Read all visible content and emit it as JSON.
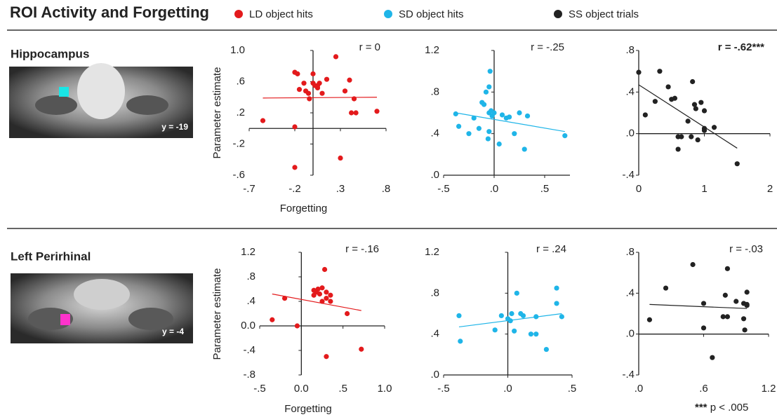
{
  "figure": {
    "title": "ROI Activity and Forgetting",
    "rows": [
      {
        "label": "Hippocampus",
        "slice": "y = -19"
      },
      {
        "label": "Left Perirhinal",
        "slice": "y = -4"
      }
    ],
    "footnote": {
      "marker": "***",
      "text": "p < .005"
    }
  },
  "chart_data": [
    {
      "type": "scatter",
      "annotation": "r = 0",
      "ylabel": "Parameter estimate",
      "xlabel": "Forgetting",
      "xlim": [
        -0.7,
        0.8
      ],
      "ylim": [
        -0.6,
        1.0
      ],
      "xticks": [
        {
          "value": -0.7,
          "label": "-.7"
        },
        {
          "value": -0.2,
          "label": "-.2"
        },
        {
          "value": 0.3,
          "label": ".3"
        },
        {
          "value": 0.8,
          "label": ".8"
        }
      ],
      "yticks": [
        {
          "value": 1.0,
          "label": "1.0"
        },
        {
          "value": 0.6,
          "label": ".6"
        },
        {
          "value": 0.2,
          "label": ".2"
        },
        {
          "value": -0.2,
          "label": "-.2"
        },
        {
          "value": -0.6,
          "label": "-.6"
        }
      ],
      "series": [
        {
          "name": "LD object hits",
          "color": "#e31a1c",
          "x": [
            -0.55,
            -0.2,
            -0.17,
            -0.15,
            -0.1,
            -0.08,
            -0.05,
            0,
            0,
            0.02,
            0.05,
            0.07,
            0.1,
            0.15,
            -0.2,
            0.25,
            0.35,
            0.4,
            0.42,
            0.47,
            0.45,
            0.7,
            -0.2,
            0.3,
            -0.04,
            0.05
          ],
          "y": [
            0.1,
            0.72,
            0.7,
            0.5,
            0.58,
            0.48,
            0.45,
            0.7,
            0.58,
            0.55,
            0.52,
            0.58,
            0.45,
            0.63,
            0.02,
            0.92,
            0.48,
            0.62,
            0.2,
            0.2,
            0.38,
            0.22,
            -0.5,
            -0.38,
            0.38,
            0.55
          ]
        }
      ],
      "trend": {
        "x": [
          -0.55,
          0.7
        ],
        "y": [
          0.39,
          0.4
        ]
      }
    },
    {
      "type": "scatter",
      "annotation": "r = -.25",
      "xlim": [
        -0.5,
        0.75
      ],
      "ylim": [
        0,
        1.2
      ],
      "xticks": [
        {
          "value": -0.5,
          "label": "-.5"
        },
        {
          "value": 0,
          "label": ".0"
        },
        {
          "value": 0.5,
          "label": ".5"
        }
      ],
      "yticks": [
        {
          "value": 1.2,
          "label": "1.2"
        },
        {
          "value": 0.8,
          "label": ".8"
        },
        {
          "value": 0.4,
          "label": ".4"
        },
        {
          "value": 0,
          "label": ".0"
        }
      ],
      "series": [
        {
          "name": "SD object hits",
          "color": "#1fb5e8",
          "x": [
            -0.38,
            -0.35,
            -0.25,
            -0.2,
            -0.15,
            -0.12,
            -0.1,
            -0.08,
            -0.05,
            -0.04,
            -0.05,
            -0.03,
            -0.06,
            -0.05,
            -0.02,
            0,
            0.05,
            0.08,
            0.12,
            0.15,
            0.2,
            0.25,
            0.3,
            0.33,
            0.7
          ],
          "y": [
            0.59,
            0.47,
            0.4,
            0.55,
            0.45,
            0.7,
            0.68,
            0.8,
            0.85,
            1.0,
            0.6,
            0.62,
            0.35,
            0.42,
            0.57,
            0.6,
            0.3,
            0.58,
            0.55,
            0.56,
            0.4,
            0.6,
            0.25,
            0.57,
            0.38
          ]
        }
      ],
      "trend": {
        "x": [
          -0.38,
          0.7
        ],
        "y": [
          0.6,
          0.42
        ]
      }
    },
    {
      "type": "scatter",
      "annotation": "r = -.62***",
      "annotation_bold": true,
      "xlim": [
        0,
        2
      ],
      "ylim": [
        -0.4,
        0.8
      ],
      "xticks": [
        0,
        1,
        2
      ],
      "yticks": [
        {
          "value": 0.8,
          "label": ".8"
        },
        {
          "value": 0.4,
          "label": ".4"
        },
        {
          "value": 0,
          "label": ".0"
        },
        {
          "value": -0.4,
          "label": "-.4"
        }
      ],
      "series": [
        {
          "name": "SS object trials",
          "color": "#222222",
          "x": [
            0,
            0.1,
            0.25,
            0.32,
            0.45,
            0.5,
            0.6,
            0.6,
            0.65,
            0.75,
            0.8,
            0.82,
            0.85,
            0.87,
            0.9,
            0.95,
            1.0,
            1.0,
            1.0,
            1.15,
            1.5,
            0.55
          ],
          "y": [
            0.59,
            0.18,
            0.31,
            0.6,
            0.45,
            0.33,
            -0.03,
            -0.15,
            -0.03,
            0.12,
            -0.03,
            0.5,
            0.28,
            0.24,
            -0.06,
            0.3,
            0.05,
            0.22,
            0.03,
            0.06,
            -0.29,
            0.34
          ]
        }
      ],
      "trend": {
        "x": [
          0,
          1.5
        ],
        "y": [
          0.47,
          -0.14
        ]
      }
    },
    {
      "type": "scatter",
      "annotation": "r = -.16",
      "ylabel": "Parameter estimate",
      "xlabel": "Forgetting",
      "xlim": [
        -0.5,
        1.0
      ],
      "ylim": [
        -0.8,
        1.2
      ],
      "xticks": [
        {
          "value": -0.5,
          "label": "-.5"
        },
        {
          "value": 0,
          "label": "0.0"
        },
        {
          "value": 0.5,
          "label": ".5"
        },
        {
          "value": 1.0,
          "label": "1.0"
        }
      ],
      "yticks": [
        1.2,
        {
          "value": 0.8,
          "label": ".8"
        },
        {
          "value": 0.4,
          "label": ".4"
        },
        {
          "value": 0,
          "label": "0.0"
        },
        {
          "value": -0.4,
          "label": "-.4"
        },
        {
          "value": -0.8,
          "label": "-.8"
        }
      ],
      "series": [
        {
          "color": "#e31a1c",
          "x": [
            -0.35,
            -0.2,
            -0.05,
            0.15,
            0.15,
            0.18,
            0.2,
            0.22,
            0.25,
            0.25,
            0.28,
            0.3,
            0.3,
            0.35,
            0.35,
            0.55,
            0.72,
            0.3
          ],
          "y": [
            0.1,
            0.45,
            0.0,
            0.5,
            0.58,
            0.55,
            0.6,
            0.52,
            0.62,
            0.4,
            0.92,
            0.55,
            0.45,
            0.5,
            0.4,
            0.2,
            -0.38,
            -0.5
          ]
        }
      ],
      "trend": {
        "x": [
          -0.35,
          0.72
        ],
        "y": [
          0.52,
          0.25
        ]
      }
    },
    {
      "type": "scatter",
      "annotation": "r = .24",
      "xlim": [
        -0.5,
        0.5
      ],
      "ylim": [
        0,
        1.2
      ],
      "xticks": [
        {
          "value": -0.5,
          "label": "-.5"
        },
        {
          "value": 0,
          "label": ".0"
        },
        {
          "value": 0.5,
          "label": ".5"
        }
      ],
      "yticks": [
        1.2,
        {
          "value": 0.8,
          "label": ".8"
        },
        {
          "value": 0.4,
          "label": ".4"
        },
        {
          "value": 0,
          "label": ".0"
        }
      ],
      "series": [
        {
          "color": "#1fb5e8",
          "x": [
            -0.38,
            -0.37,
            -0.1,
            -0.05,
            0,
            0.02,
            0.03,
            0.05,
            0.07,
            0.1,
            0.12,
            0.18,
            0.22,
            0.22,
            0.3,
            0.38,
            0.38,
            0.42
          ],
          "y": [
            0.58,
            0.33,
            0.44,
            0.58,
            0.55,
            0.53,
            0.6,
            0.43,
            0.8,
            0.6,
            0.58,
            0.4,
            0.4,
            0.57,
            0.25,
            0.7,
            0.85,
            0.57
          ]
        }
      ],
      "trend": {
        "x": [
          -0.38,
          0.42
        ],
        "y": [
          0.47,
          0.6
        ]
      }
    },
    {
      "type": "scatter",
      "annotation": "r = -.03",
      "xlim": [
        0,
        1.2
      ],
      "ylim": [
        -0.4,
        0.8
      ],
      "xticks": [
        {
          "value": 0,
          "label": ".0"
        },
        {
          "value": 0.6,
          "label": ".6"
        },
        1.2
      ],
      "yticks": [
        {
          "value": 0.8,
          "label": ".8"
        },
        {
          "value": 0.4,
          "label": ".4"
        },
        {
          "value": 0,
          "label": ".0"
        },
        {
          "value": -0.4,
          "label": "-.4"
        }
      ],
      "series": [
        {
          "color": "#222222",
          "x": [
            0.1,
            0.25,
            0.5,
            0.6,
            0.6,
            0.68,
            0.78,
            0.8,
            0.82,
            0.82,
            0.9,
            0.97,
            0.98,
            1.0,
            1.0,
            0.97,
            1.0
          ],
          "y": [
            0.14,
            0.45,
            0.68,
            0.3,
            0.06,
            -0.23,
            0.17,
            0.38,
            0.64,
            0.17,
            0.32,
            0.3,
            0.04,
            0.41,
            0.29,
            0.15,
            0.28
          ]
        }
      ],
      "trend": {
        "x": [
          0.1,
          1.0
        ],
        "y": [
          0.29,
          0.25
        ]
      }
    }
  ]
}
